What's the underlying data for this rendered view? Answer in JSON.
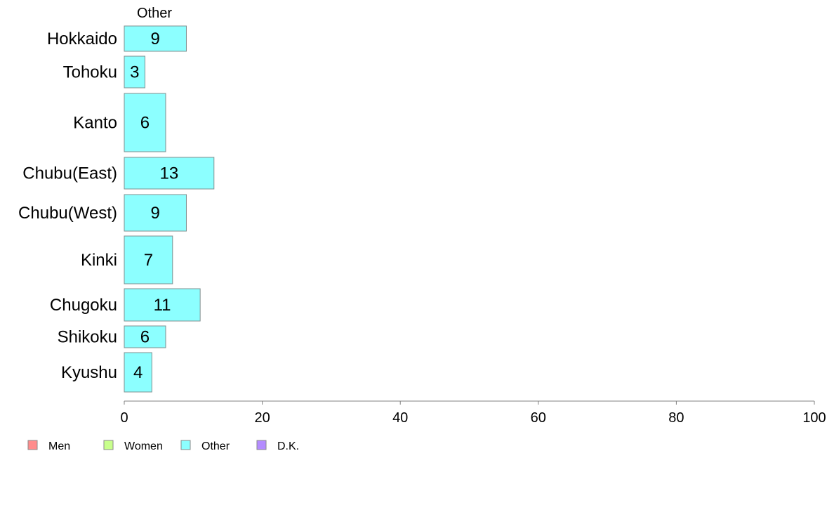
{
  "chart_data": {
    "type": "bar",
    "orientation": "horizontal",
    "column_header": "Other",
    "categories": [
      "Hokkaido",
      "Tohoku",
      "Kanto",
      "Chubu(East)",
      "Chubu(West)",
      "Kinki",
      "Chugoku",
      "Shikoku",
      "Kyushu"
    ],
    "series": [
      {
        "name": "Other",
        "values": [
          9,
          3,
          6,
          13,
          9,
          7,
          11,
          6,
          4
        ],
        "color": "#8cffff"
      }
    ],
    "data_labels": [
      "9",
      "3",
      "6",
      "13",
      "9",
      "7",
      "11",
      "6",
      "4"
    ],
    "xlim": [
      0,
      100
    ],
    "xticks": [
      0,
      20,
      40,
      60,
      80,
      100
    ],
    "xlabel": "",
    "ylabel": "",
    "title": "",
    "grid": false,
    "legend": {
      "placement": "bottom-left",
      "items": [
        {
          "label": "Men",
          "color": "#ff8c8c"
        },
        {
          "label": "Women",
          "color": "#c8ff8c"
        },
        {
          "label": "Other",
          "color": "#8cffff"
        },
        {
          "label": "D.K.",
          "color": "#b48cff"
        }
      ]
    }
  }
}
